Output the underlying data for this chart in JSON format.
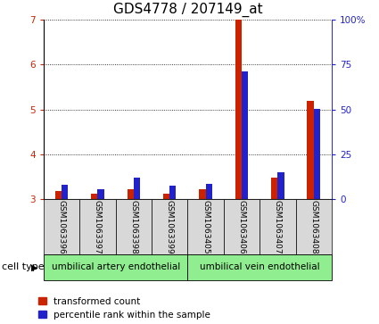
{
  "title": "GDS4778 / 207149_at",
  "samples": [
    "GSM1063396",
    "GSM1063397",
    "GSM1063398",
    "GSM1063399",
    "GSM1063405",
    "GSM1063406",
    "GSM1063407",
    "GSM1063408"
  ],
  "red_values": [
    3.18,
    3.12,
    3.22,
    3.12,
    3.22,
    7.0,
    3.48,
    5.18
  ],
  "blue_values": [
    3.32,
    3.22,
    3.48,
    3.3,
    3.35,
    5.85,
    3.6,
    5.02
  ],
  "red_base": 3.0,
  "ylim_left": [
    3.0,
    7.0
  ],
  "ylim_right": [
    0,
    100
  ],
  "yticks_left": [
    3,
    4,
    5,
    6,
    7
  ],
  "yticks_right": [
    0,
    25,
    50,
    75,
    100
  ],
  "ytick_labels_right": [
    "0",
    "25",
    "50",
    "75",
    "100%"
  ],
  "group1_label": "umbilical artery endothelial",
  "group2_label": "umbilical vein endothelial",
  "group_color": "#90EE90",
  "legend_red": "transformed count",
  "legend_blue": "percentile rank within the sample",
  "cell_type_label": "cell type",
  "bar_width": 0.18,
  "sample_box_color": "#d8d8d8",
  "red_color": "#cc2200",
  "blue_color": "#2222cc",
  "title_fontsize": 11,
  "tick_fontsize": 7.5,
  "sample_fontsize": 6.5,
  "group_fontsize": 7.5,
  "legend_fontsize": 7.5
}
